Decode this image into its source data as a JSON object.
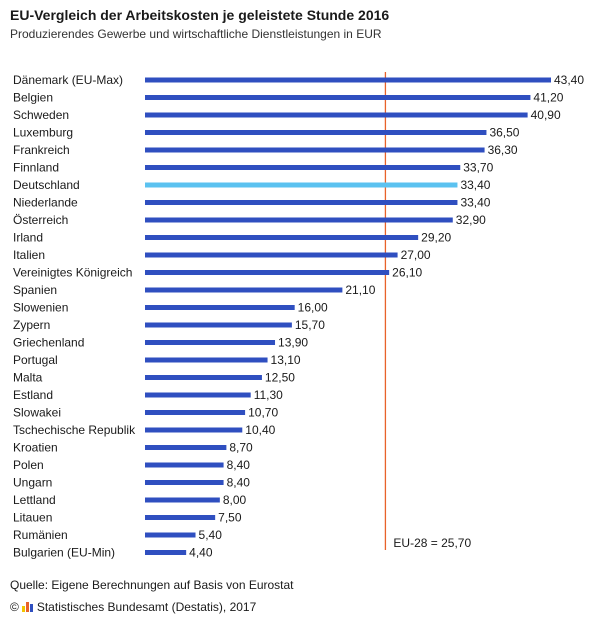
{
  "header": {
    "title": "EU-Vergleich der Arbeitskosten je geleistete Stunde 2016",
    "subtitle": "Produzierendes Gewerbe und wirtschaftliche Dienstleistungen in EUR"
  },
  "chart_data": {
    "type": "bar",
    "orientation": "horizontal",
    "title": "EU-Vergleich der Arbeitskosten je geleistete Stunde 2016",
    "subtitle": "Produzierendes Gewerbe und wirtschaftliche Dienstleistungen in EUR",
    "categories": [
      "Dänemark (EU-Max)",
      "Belgien",
      "Schweden",
      "Luxemburg",
      "Frankreich",
      "Finnland",
      "Deutschland",
      "Niederlande",
      "Österreich",
      "Irland",
      "Italien",
      "Vereinigtes Königreich",
      "Spanien",
      "Slowenien",
      "Zypern",
      "Griechenland",
      "Portugal",
      "Malta",
      "Estland",
      "Slowakei",
      "Tschechische Republik",
      "Kroatien",
      "Polen",
      "Ungarn",
      "Lettland",
      "Litauen",
      "Rumänien",
      "Bulgarien (EU-Min)"
    ],
    "values": [
      43.4,
      41.2,
      40.9,
      36.5,
      36.3,
      33.7,
      33.4,
      33.4,
      32.9,
      29.2,
      27.0,
      26.1,
      21.1,
      16.0,
      15.7,
      13.9,
      13.1,
      12.5,
      11.3,
      10.7,
      10.4,
      8.7,
      8.4,
      8.4,
      8.0,
      7.5,
      5.4,
      4.4
    ],
    "value_labels": [
      "43,40",
      "41,20",
      "40,90",
      "36,50",
      "36,30",
      "33,70",
      "33,40",
      "33,40",
      "32,90",
      "29,20",
      "27,00",
      "26,10",
      "21,10",
      "16,00",
      "15,70",
      "13,90",
      "13,10",
      "12,50",
      "11,30",
      "10,70",
      "10,40",
      "8,70",
      "8,40",
      "8,40",
      "8,00",
      "7,50",
      "5,40",
      "4,40"
    ],
    "highlight": "Deutschland",
    "reference_line": {
      "value": 25.7,
      "label": "EU-28 = 25,70"
    },
    "xlim": [
      0,
      43.4
    ],
    "grid": false,
    "legend": "none",
    "colors": {
      "bar": "#2f4fc0",
      "highlight": "#5bc2f0",
      "reference": "#e8622a"
    }
  },
  "footer": {
    "source": "Quelle: Eigene Berechnungen auf Basis von Eurostat",
    "copyright_symbol": "©",
    "copyright_text": "Statistisches Bundesamt (Destatis), 2017",
    "logo_colors": [
      "#f2c500",
      "#e8622a",
      "#2f4fc0"
    ]
  }
}
